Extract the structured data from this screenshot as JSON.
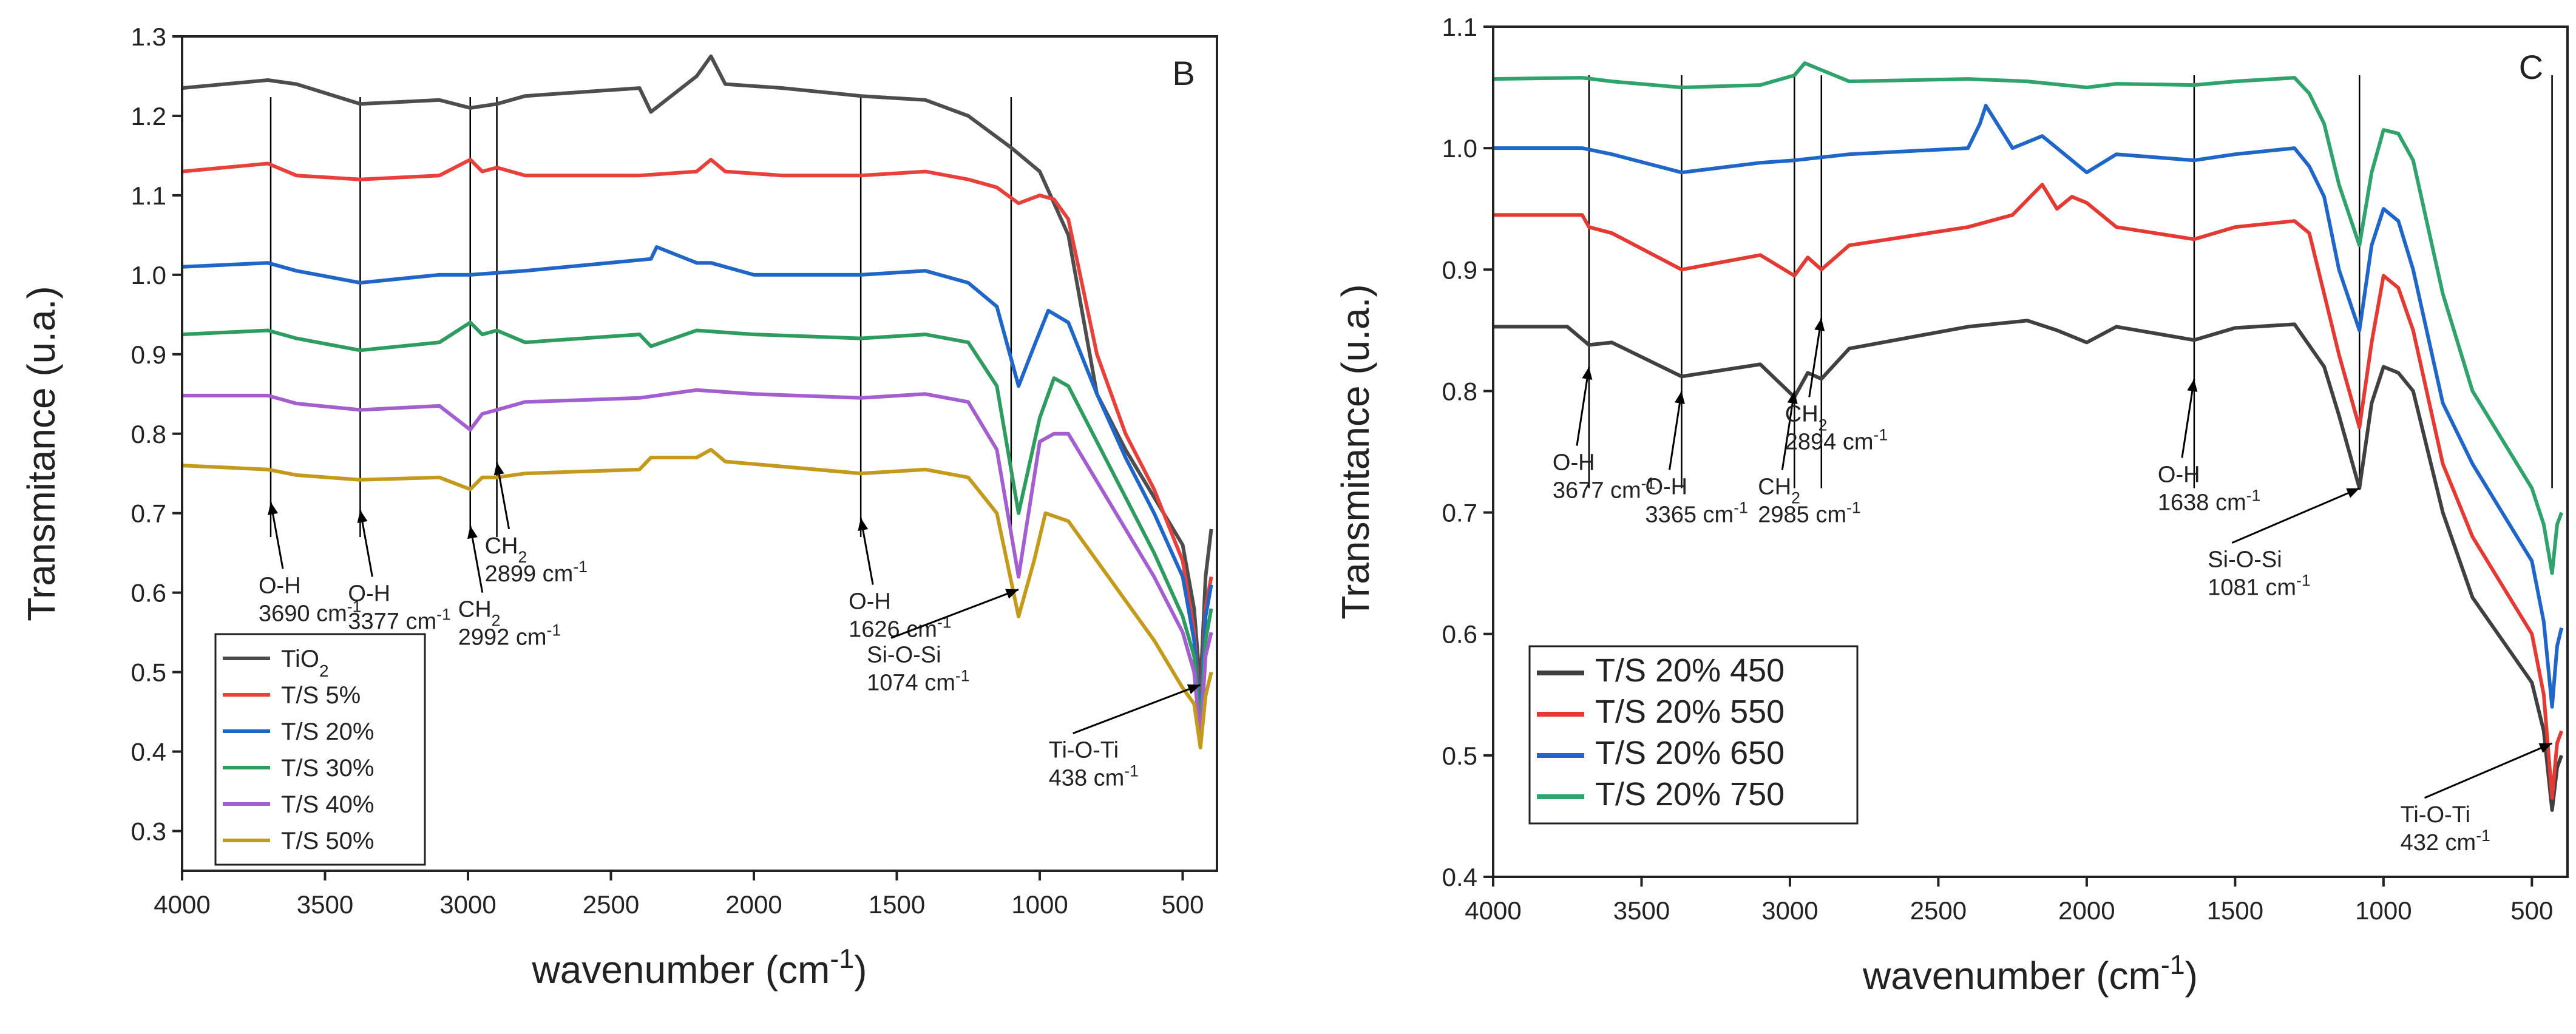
{
  "chart_data": [
    {
      "type": "line",
      "panel": "B",
      "xlabel": "wavenumber (cm",
      "xlabel_sup": "-1",
      "xlabel_end": ")",
      "ylabel": "Transmitance (u.a.)",
      "xlim": [
        4000,
        380
      ],
      "ylim": [
        0.25,
        1.3
      ],
      "x_ticks": [
        "4000",
        "3500",
        "3000",
        "2500",
        "2000",
        "1500",
        "1000",
        "500"
      ],
      "x_tick_values": [
        4000,
        3500,
        3000,
        2500,
        2000,
        1500,
        1000,
        500
      ],
      "y_ticks": [
        "0.3",
        "0.4",
        "0.5",
        "0.6",
        "0.7",
        "0.8",
        "0.9",
        "1.0",
        "1.1",
        "1.2",
        "1.3"
      ],
      "y_tick_values": [
        0.3,
        0.4,
        0.5,
        0.6,
        0.7,
        0.8,
        0.9,
        1.0,
        1.1,
        1.2,
        1.3
      ],
      "legend_position": "bottom-left",
      "series": [
        {
          "name": "TiO",
          "name_sub": "2",
          "color": "#4d4d4d",
          "x": [
            4000,
            3700,
            3600,
            3377,
            3100,
            2992,
            2899,
            2800,
            2400,
            2360,
            2200,
            2150,
            2100,
            1900,
            1626,
            1400,
            1250,
            1100,
            1000,
            900,
            800,
            700,
            600,
            500,
            460,
            438,
            420,
            400
          ],
          "y": [
            1.235,
            1.245,
            1.24,
            1.215,
            1.22,
            1.21,
            1.215,
            1.225,
            1.235,
            1.205,
            1.25,
            1.275,
            1.24,
            1.235,
            1.225,
            1.22,
            1.2,
            1.16,
            1.13,
            1.05,
            0.85,
            0.78,
            0.72,
            0.66,
            0.58,
            0.48,
            0.62,
            0.68
          ]
        },
        {
          "name": "T/S 5%",
          "color": "#e8413c",
          "x": [
            4000,
            3700,
            3600,
            3377,
            3100,
            2992,
            2950,
            2899,
            2800,
            2400,
            2200,
            2150,
            2100,
            1900,
            1626,
            1400,
            1250,
            1150,
            1074,
            1000,
            950,
            900,
            800,
            700,
            600,
            500,
            460,
            438,
            420,
            400
          ],
          "y": [
            1.13,
            1.14,
            1.125,
            1.12,
            1.125,
            1.145,
            1.13,
            1.135,
            1.125,
            1.125,
            1.13,
            1.145,
            1.13,
            1.125,
            1.125,
            1.13,
            1.12,
            1.11,
            1.09,
            1.1,
            1.095,
            1.07,
            0.9,
            0.8,
            0.73,
            0.64,
            0.55,
            0.44,
            0.58,
            0.62
          ]
        },
        {
          "name": "T/S 20%",
          "color": "#1f66c8",
          "x": [
            4000,
            3700,
            3600,
            3377,
            3100,
            2992,
            2800,
            2360,
            2340,
            2200,
            2150,
            2000,
            1626,
            1400,
            1250,
            1150,
            1074,
            1020,
            970,
            900,
            800,
            700,
            600,
            500,
            460,
            438,
            420,
            400
          ],
          "y": [
            1.01,
            1.015,
            1.005,
            0.99,
            1.0,
            1.0,
            1.005,
            1.02,
            1.035,
            1.015,
            1.015,
            1.0,
            1.0,
            1.005,
            0.99,
            0.96,
            0.86,
            0.91,
            0.955,
            0.94,
            0.85,
            0.77,
            0.7,
            0.62,
            0.54,
            0.435,
            0.57,
            0.61
          ]
        },
        {
          "name": "T/S 30%",
          "color": "#2e9b5f",
          "x": [
            4000,
            3700,
            3600,
            3377,
            3100,
            2992,
            2950,
            2899,
            2800,
            2400,
            2360,
            2200,
            2000,
            1626,
            1400,
            1250,
            1150,
            1074,
            1000,
            950,
            900,
            800,
            700,
            600,
            500,
            460,
            438,
            420,
            400
          ],
          "y": [
            0.925,
            0.93,
            0.92,
            0.905,
            0.915,
            0.94,
            0.925,
            0.93,
            0.915,
            0.925,
            0.91,
            0.93,
            0.925,
            0.92,
            0.925,
            0.915,
            0.86,
            0.7,
            0.82,
            0.87,
            0.86,
            0.79,
            0.72,
            0.65,
            0.57,
            0.52,
            0.43,
            0.54,
            0.58
          ]
        },
        {
          "name": "T/S 40%",
          "color": "#a35fd0",
          "x": [
            4000,
            3700,
            3600,
            3377,
            3100,
            2992,
            2950,
            2899,
            2800,
            2400,
            2200,
            2000,
            1626,
            1400,
            1250,
            1150,
            1074,
            1000,
            950,
            900,
            800,
            700,
            600,
            500,
            460,
            438,
            420,
            400
          ],
          "y": [
            0.848,
            0.848,
            0.838,
            0.83,
            0.835,
            0.805,
            0.825,
            0.83,
            0.84,
            0.845,
            0.855,
            0.85,
            0.845,
            0.85,
            0.84,
            0.78,
            0.62,
            0.79,
            0.8,
            0.8,
            0.74,
            0.68,
            0.62,
            0.55,
            0.5,
            0.415,
            0.52,
            0.55
          ]
        },
        {
          "name": "T/S 50%",
          "color": "#c49a1c",
          "x": [
            4000,
            3700,
            3600,
            3377,
            3100,
            2992,
            2950,
            2899,
            2800,
            2400,
            2360,
            2200,
            2150,
            2100,
            1626,
            1400,
            1250,
            1150,
            1074,
            1020,
            980,
            900,
            800,
            700,
            600,
            500,
            460,
            438,
            420,
            400
          ],
          "y": [
            0.76,
            0.755,
            0.748,
            0.742,
            0.745,
            0.73,
            0.745,
            0.745,
            0.75,
            0.755,
            0.77,
            0.77,
            0.78,
            0.765,
            0.75,
            0.755,
            0.745,
            0.7,
            0.57,
            0.64,
            0.7,
            0.69,
            0.64,
            0.59,
            0.54,
            0.48,
            0.46,
            0.405,
            0.47,
            0.5
          ]
        }
      ],
      "guides": [
        3690,
        3377,
        2992,
        2899,
        1626,
        1100
      ],
      "annotations": [
        {
          "text1": "O-H",
          "text2": "3690 cm",
          "sup": "-1",
          "x": 3690,
          "y": 0.63
        },
        {
          "text1": "O-H",
          "text2": "3377 cm",
          "sup": "-1",
          "x": 3377,
          "y": 0.62
        },
        {
          "text1": "CH",
          "sub": "2",
          "text2": "2992 cm",
          "sup": "-1",
          "x": 2992,
          "y": 0.6
        },
        {
          "text1": "CH",
          "sub": "2",
          "text2": "2899 cm",
          "sup": "-1",
          "x": 2899,
          "y": 0.68
        },
        {
          "text1": "O-H",
          "text2": "1626 cm",
          "sup": "-1",
          "x": 1626,
          "y": 0.61
        },
        {
          "text1": "Si-O-Si",
          "text2": "1074 cm",
          "sup": "-1",
          "x": 1074,
          "y": 0.52
        },
        {
          "text1": "Ti-O-Ti",
          "text2": "438 cm",
          "sup": "-1",
          "x": 438,
          "y": 0.4
        }
      ]
    },
    {
      "type": "line",
      "panel": "C",
      "xlabel": "wavenumber (cm",
      "xlabel_sup": "-1",
      "xlabel_end": ")",
      "ylabel": "Transmitance (u.a.)",
      "xlim": [
        4000,
        380
      ],
      "ylim": [
        0.4,
        1.1
      ],
      "x_ticks": [
        "4000",
        "3500",
        "3000",
        "2500",
        "2000",
        "1500",
        "1000",
        "500"
      ],
      "x_tick_values": [
        4000,
        3500,
        3000,
        2500,
        2000,
        1500,
        1000,
        500
      ],
      "y_ticks": [
        "0.4",
        "0.5",
        "0.6",
        "0.7",
        "0.8",
        "0.9",
        "1.0",
        "1.1"
      ],
      "y_tick_values": [
        0.4,
        0.5,
        0.6,
        0.7,
        0.8,
        0.9,
        1.0,
        1.1
      ],
      "legend_position": "bottom-left",
      "series": [
        {
          "name": "T/S 20% 450",
          "color": "#404040",
          "x": [
            4000,
            3750,
            3677,
            3600,
            3365,
            3100,
            2985,
            2940,
            2894,
            2800,
            2400,
            2200,
            2100,
            2000,
            1900,
            1638,
            1500,
            1300,
            1200,
            1150,
            1081,
            1040,
            1000,
            950,
            900,
            800,
            700,
            600,
            500,
            460,
            432,
            415,
            400
          ],
          "y": [
            0.853,
            0.853,
            0.838,
            0.84,
            0.812,
            0.822,
            0.795,
            0.815,
            0.81,
            0.835,
            0.853,
            0.858,
            0.85,
            0.84,
            0.853,
            0.842,
            0.852,
            0.855,
            0.82,
            0.78,
            0.72,
            0.79,
            0.82,
            0.815,
            0.8,
            0.7,
            0.63,
            0.595,
            0.56,
            0.52,
            0.455,
            0.49,
            0.5
          ]
        },
        {
          "name": "T/S 20% 550",
          "color": "#e33b33",
          "x": [
            4000,
            3700,
            3677,
            3600,
            3365,
            3100,
            2985,
            2940,
            2894,
            2800,
            2400,
            2250,
            2150,
            2100,
            2050,
            2000,
            1900,
            1638,
            1500,
            1300,
            1250,
            1200,
            1150,
            1081,
            1040,
            1000,
            950,
            900,
            800,
            700,
            600,
            500,
            460,
            432,
            415,
            400
          ],
          "y": [
            0.945,
            0.945,
            0.935,
            0.93,
            0.9,
            0.912,
            0.895,
            0.91,
            0.9,
            0.92,
            0.935,
            0.945,
            0.97,
            0.95,
            0.96,
            0.955,
            0.935,
            0.925,
            0.935,
            0.94,
            0.93,
            0.88,
            0.83,
            0.77,
            0.84,
            0.895,
            0.885,
            0.85,
            0.74,
            0.68,
            0.64,
            0.6,
            0.55,
            0.465,
            0.51,
            0.52
          ]
        },
        {
          "name": "T/S 20% 650",
          "color": "#1f66c8",
          "x": [
            4000,
            3700,
            3600,
            3365,
            3100,
            2985,
            2800,
            2400,
            2360,
            2340,
            2250,
            2150,
            2050,
            2000,
            1900,
            1638,
            1500,
            1300,
            1250,
            1200,
            1150,
            1081,
            1040,
            1000,
            950,
            900,
            800,
            700,
            600,
            500,
            460,
            432,
            415,
            400
          ],
          "y": [
            1.0,
            1.0,
            0.995,
            0.98,
            0.988,
            0.99,
            0.995,
            1.0,
            1.02,
            1.035,
            1.0,
            1.01,
            0.99,
            0.98,
            0.995,
            0.99,
            0.995,
            1.0,
            0.985,
            0.96,
            0.9,
            0.85,
            0.92,
            0.95,
            0.94,
            0.9,
            0.79,
            0.74,
            0.7,
            0.66,
            0.61,
            0.54,
            0.59,
            0.605
          ]
        },
        {
          "name": "T/S 20% 750",
          "color": "#2fa36b",
          "x": [
            4000,
            3700,
            3600,
            3365,
            3100,
            2985,
            2950,
            2900,
            2800,
            2400,
            2200,
            2000,
            1900,
            1638,
            1500,
            1300,
            1250,
            1200,
            1150,
            1081,
            1040,
            1000,
            950,
            900,
            800,
            700,
            600,
            500,
            460,
            432,
            415,
            400
          ],
          "y": [
            1.057,
            1.058,
            1.055,
            1.05,
            1.052,
            1.06,
            1.07,
            1.065,
            1.055,
            1.057,
            1.055,
            1.05,
            1.053,
            1.052,
            1.055,
            1.058,
            1.045,
            1.02,
            0.97,
            0.92,
            0.98,
            1.015,
            1.012,
            0.99,
            0.88,
            0.8,
            0.76,
            0.72,
            0.69,
            0.65,
            0.69,
            0.7
          ]
        }
      ],
      "guides": [
        3677,
        3365,
        2985,
        2894,
        1638,
        1081,
        432
      ],
      "annotations": [
        {
          "text1": "O-H",
          "text2": "3677 cm",
          "sup": "-1",
          "x": 3677,
          "y": 0.76
        },
        {
          "text1": "O-H",
          "text2": "3365 cm",
          "sup": "-1",
          "x": 3365,
          "y": 0.74
        },
        {
          "text1": "CH",
          "sub": "2",
          "text2": "2985 cm",
          "sup": "-1",
          "x": 2985,
          "y": 0.74
        },
        {
          "text1": "CH",
          "sub": "2",
          "text2": "2894 cm",
          "sup": "-1",
          "x": 2894,
          "y": 0.8
        },
        {
          "text1": "O-H",
          "text2": "1638 cm",
          "sup": "-1",
          "x": 1638,
          "y": 0.75
        },
        {
          "text1": "Si-O-Si",
          "text2": "1081 cm",
          "sup": "-1",
          "x": 1081,
          "y": 0.66
        },
        {
          "text1": "Ti-O-Ti",
          "text2": "432 cm",
          "sup": "-1",
          "x": 432,
          "y": 0.45
        }
      ]
    }
  ]
}
